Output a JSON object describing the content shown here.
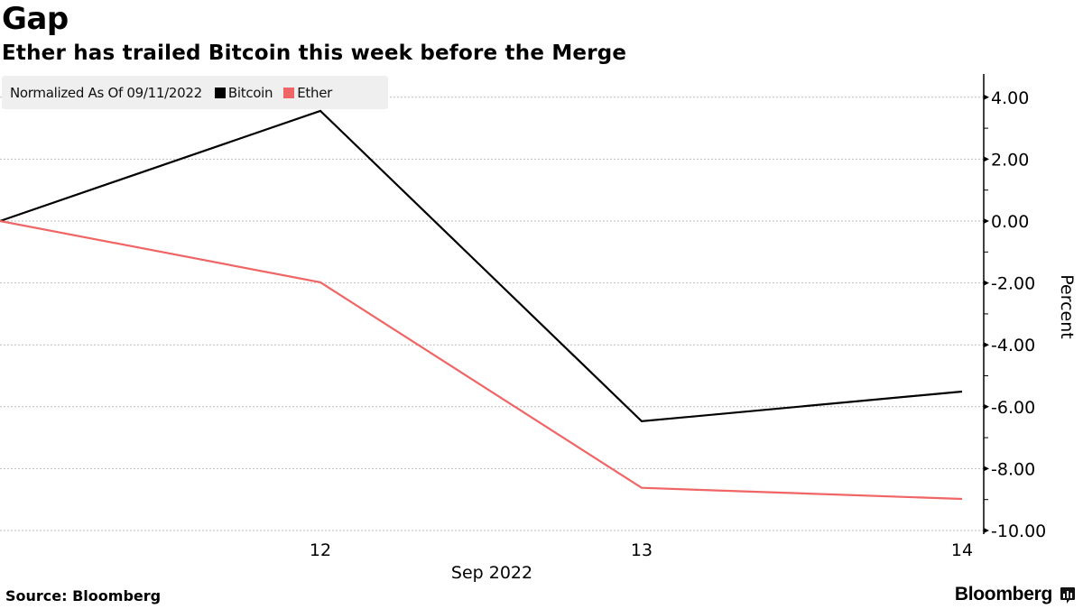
{
  "header": {
    "title": "Gap",
    "subtitle": "Ether has trailed Bitcoin this week before the Merge"
  },
  "legend": {
    "label": "Normalized As Of 09/11/2022",
    "items": [
      {
        "name": "Bitcoin",
        "color": "#000000"
      },
      {
        "name": "Ether",
        "color": "#f06565"
      }
    ]
  },
  "footer": {
    "source": "Source: Bloomberg",
    "brand": "Bloomberg",
    "brand_icon": "bloomberg-terminal-icon"
  },
  "chart_data": {
    "type": "line",
    "title": "Gap",
    "subtitle": "Ether has trailed Bitcoin this week before the Merge",
    "xlabel": "Sep 2022",
    "ylabel": "Percent",
    "x": [
      "Sep 11",
      "Sep 12",
      "Sep 13",
      "Sep 14"
    ],
    "x_tick_labels": [
      "12",
      "13",
      "14"
    ],
    "y_tick_labels": [
      "4.00",
      "2.00",
      "0.00",
      "-2.00",
      "-4.00",
      "-6.00",
      "-8.00",
      "-10.00"
    ],
    "y_ticks": [
      4,
      2,
      0,
      -2,
      -4,
      -6,
      -8,
      -10
    ],
    "ylim": [
      -10,
      4.5
    ],
    "y_axis_side": "right",
    "grid": true,
    "legend_placement": "top-left",
    "series": [
      {
        "name": "Bitcoin",
        "color": "#000000",
        "values": [
          0.0,
          3.56,
          -6.47,
          -5.51
        ]
      },
      {
        "name": "Ether",
        "color": "#f06565",
        "values": [
          0.0,
          -1.98,
          -8.62,
          -8.98
        ]
      }
    ]
  }
}
